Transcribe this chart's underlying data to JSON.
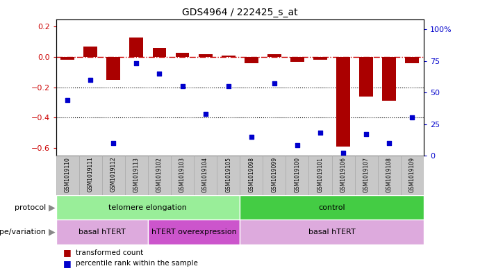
{
  "title": "GDS4964 / 222425_s_at",
  "samples": [
    "GSM1019110",
    "GSM1019111",
    "GSM1019112",
    "GSM1019113",
    "GSM1019102",
    "GSM1019103",
    "GSM1019104",
    "GSM1019105",
    "GSM1019098",
    "GSM1019099",
    "GSM1019100",
    "GSM1019101",
    "GSM1019106",
    "GSM1019107",
    "GSM1019108",
    "GSM1019109"
  ],
  "bar_values": [
    -0.02,
    0.07,
    -0.15,
    0.13,
    0.06,
    0.03,
    0.02,
    0.01,
    -0.04,
    0.02,
    -0.03,
    -0.02,
    -0.59,
    -0.26,
    -0.29,
    -0.04
  ],
  "scatter_values": [
    44,
    60,
    10,
    73,
    65,
    55,
    33,
    55,
    15,
    57,
    8,
    18,
    2,
    17,
    10,
    30
  ],
  "left_ylim": [
    -0.65,
    0.25
  ],
  "left_yticks": [
    -0.6,
    -0.4,
    -0.2,
    0.0,
    0.2
  ],
  "right_ylim": [
    0,
    108
  ],
  "right_yticks": [
    0,
    25,
    50,
    75,
    100
  ],
  "right_yticklabels": [
    "0",
    "25",
    "50",
    "75",
    "100%"
  ],
  "bar_color": "#aa0000",
  "scatter_color": "#0000cc",
  "hline_color": "#cc0000",
  "dotted_lines": [
    -0.2,
    -0.4
  ],
  "protocol_sections": [
    {
      "text": "telomere elongation",
      "start": 0,
      "end": 8,
      "color": "#99ee99"
    },
    {
      "text": "control",
      "start": 8,
      "end": 16,
      "color": "#44cc44"
    }
  ],
  "genotype_sections": [
    {
      "text": "basal hTERT",
      "start": 0,
      "end": 4,
      "color": "#ddaadd"
    },
    {
      "text": "hTERT overexpression",
      "start": 4,
      "end": 8,
      "color": "#cc55cc"
    },
    {
      "text": "basal hTERT",
      "start": 8,
      "end": 16,
      "color": "#ddaadd"
    }
  ],
  "legend_bar_label": "transformed count",
  "legend_scatter_label": "percentile rank within the sample",
  "protocol_row_label": "protocol",
  "genotype_row_label": "genotype/variation",
  "gray_color": "#c8c8c8",
  "gray_border": "#aaaaaa"
}
